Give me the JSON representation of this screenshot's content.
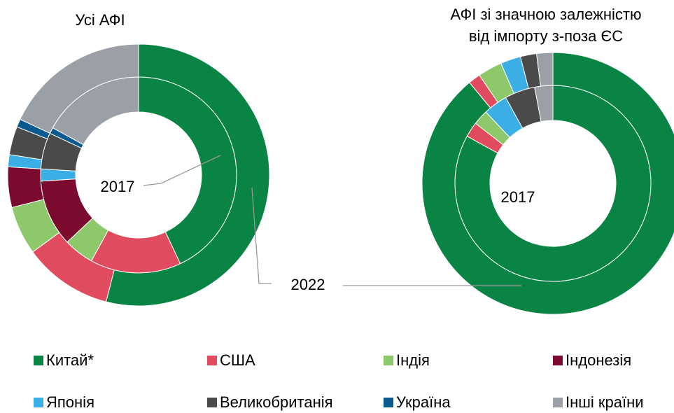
{
  "chart_data": [
    {
      "type": "donut",
      "title": "Усі АФІ",
      "categories": [
        "Китай*",
        "США",
        "Індія",
        "Індонезія",
        "Японія",
        "Великобританія",
        "Україна",
        "Інші країни"
      ],
      "series": [
        {
          "name": "2017",
          "values": [
            43,
            15,
            5,
            11,
            2,
            6,
            1,
            17
          ]
        },
        {
          "name": "2022",
          "values": [
            54,
            11,
            6,
            5,
            1.5,
            3.5,
            1,
            18
          ]
        }
      ]
    },
    {
      "type": "donut",
      "title": [
        "АФІ зі значною залежністю",
        "від імпорту з-поза ЄС"
      ],
      "categories": [
        "Китай*",
        "США",
        "Індія",
        "Індонезія",
        "Японія",
        "Великобританія",
        "Україна",
        "Інші країни"
      ],
      "series": [
        {
          "name": "2017",
          "values": [
            83,
            2.5,
            2.5,
            0,
            4,
            5,
            0,
            3
          ]
        },
        {
          "name": "2022",
          "values": [
            89,
            1.5,
            3,
            0,
            2.5,
            2,
            0,
            2
          ]
        }
      ]
    }
  ],
  "colors": [
    "#0a8445",
    "#e04b5f",
    "#8dc96a",
    "#7a0a2e",
    "#3aaee5",
    "#4a4a4a",
    "#0a5a8f",
    "#9aa0a6"
  ]
}
